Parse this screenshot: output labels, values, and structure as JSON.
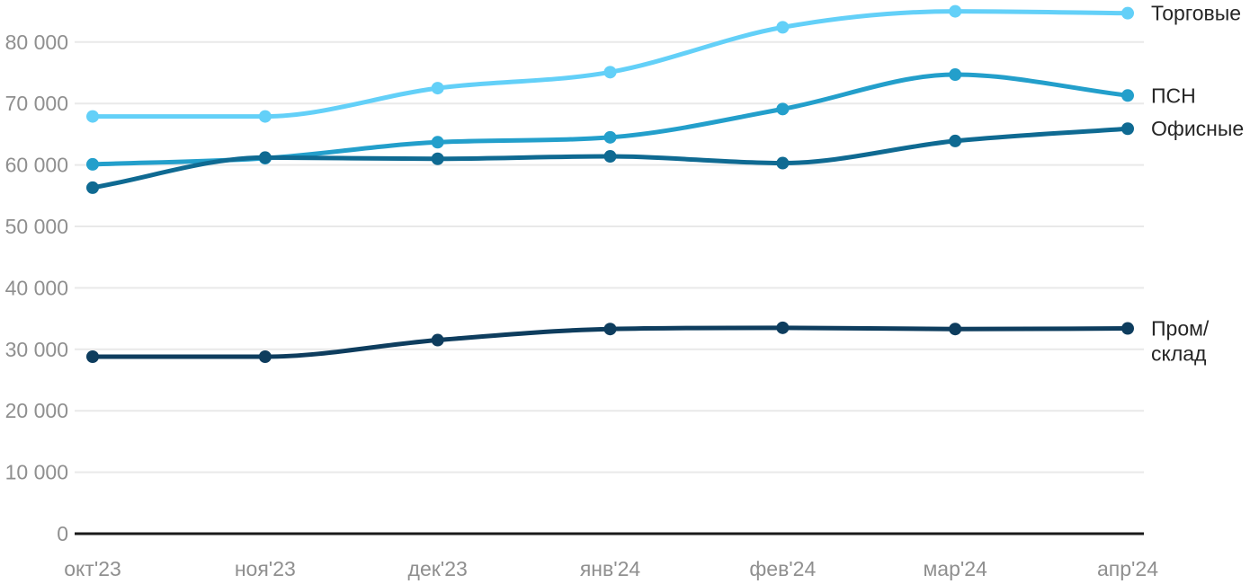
{
  "chart_data": {
    "type": "line",
    "title": "",
    "xlabel": "",
    "ylabel": "",
    "x_labels": [
      "окт'23",
      "ноя'23",
      "дек'23",
      "янв'24",
      "фев'24",
      "мар'24",
      "апр'24"
    ],
    "y_ticks": {
      "values": [
        0,
        10000,
        20000,
        30000,
        40000,
        50000,
        60000,
        70000,
        80000
      ],
      "labels": [
        "0",
        "10 000",
        "20 000",
        "30 000",
        "40 000",
        "50 000",
        "60 000",
        "70 000",
        "80 000"
      ]
    },
    "ylim": [
      0,
      86000
    ],
    "grid": true,
    "legend_position": "right-at-line-ends",
    "series": [
      {
        "name": "Торговые",
        "color": "#63D0F8",
        "values": [
          67900,
          67900,
          72500,
          75100,
          82400,
          85000,
          84700
        ]
      },
      {
        "name": "ПСН",
        "color": "#239FCB",
        "values": [
          60100,
          61100,
          63700,
          64500,
          69100,
          74700,
          71300
        ]
      },
      {
        "name": "Офисные",
        "color": "#0F6A92",
        "values": [
          56300,
          61200,
          61000,
          61400,
          60300,
          63900,
          65900
        ]
      },
      {
        "name": "Пром/склад",
        "color": "#0E3D5E",
        "values": [
          28800,
          28800,
          31500,
          33300,
          33500,
          33300,
          33400
        ]
      }
    ],
    "colors": {
      "background": "#FFFFFF",
      "axis_line": "#1A1A1A",
      "grid_line": "#E9E9E9",
      "tick_text": "#8F8F8F",
      "series_label_text": "#262626"
    }
  }
}
